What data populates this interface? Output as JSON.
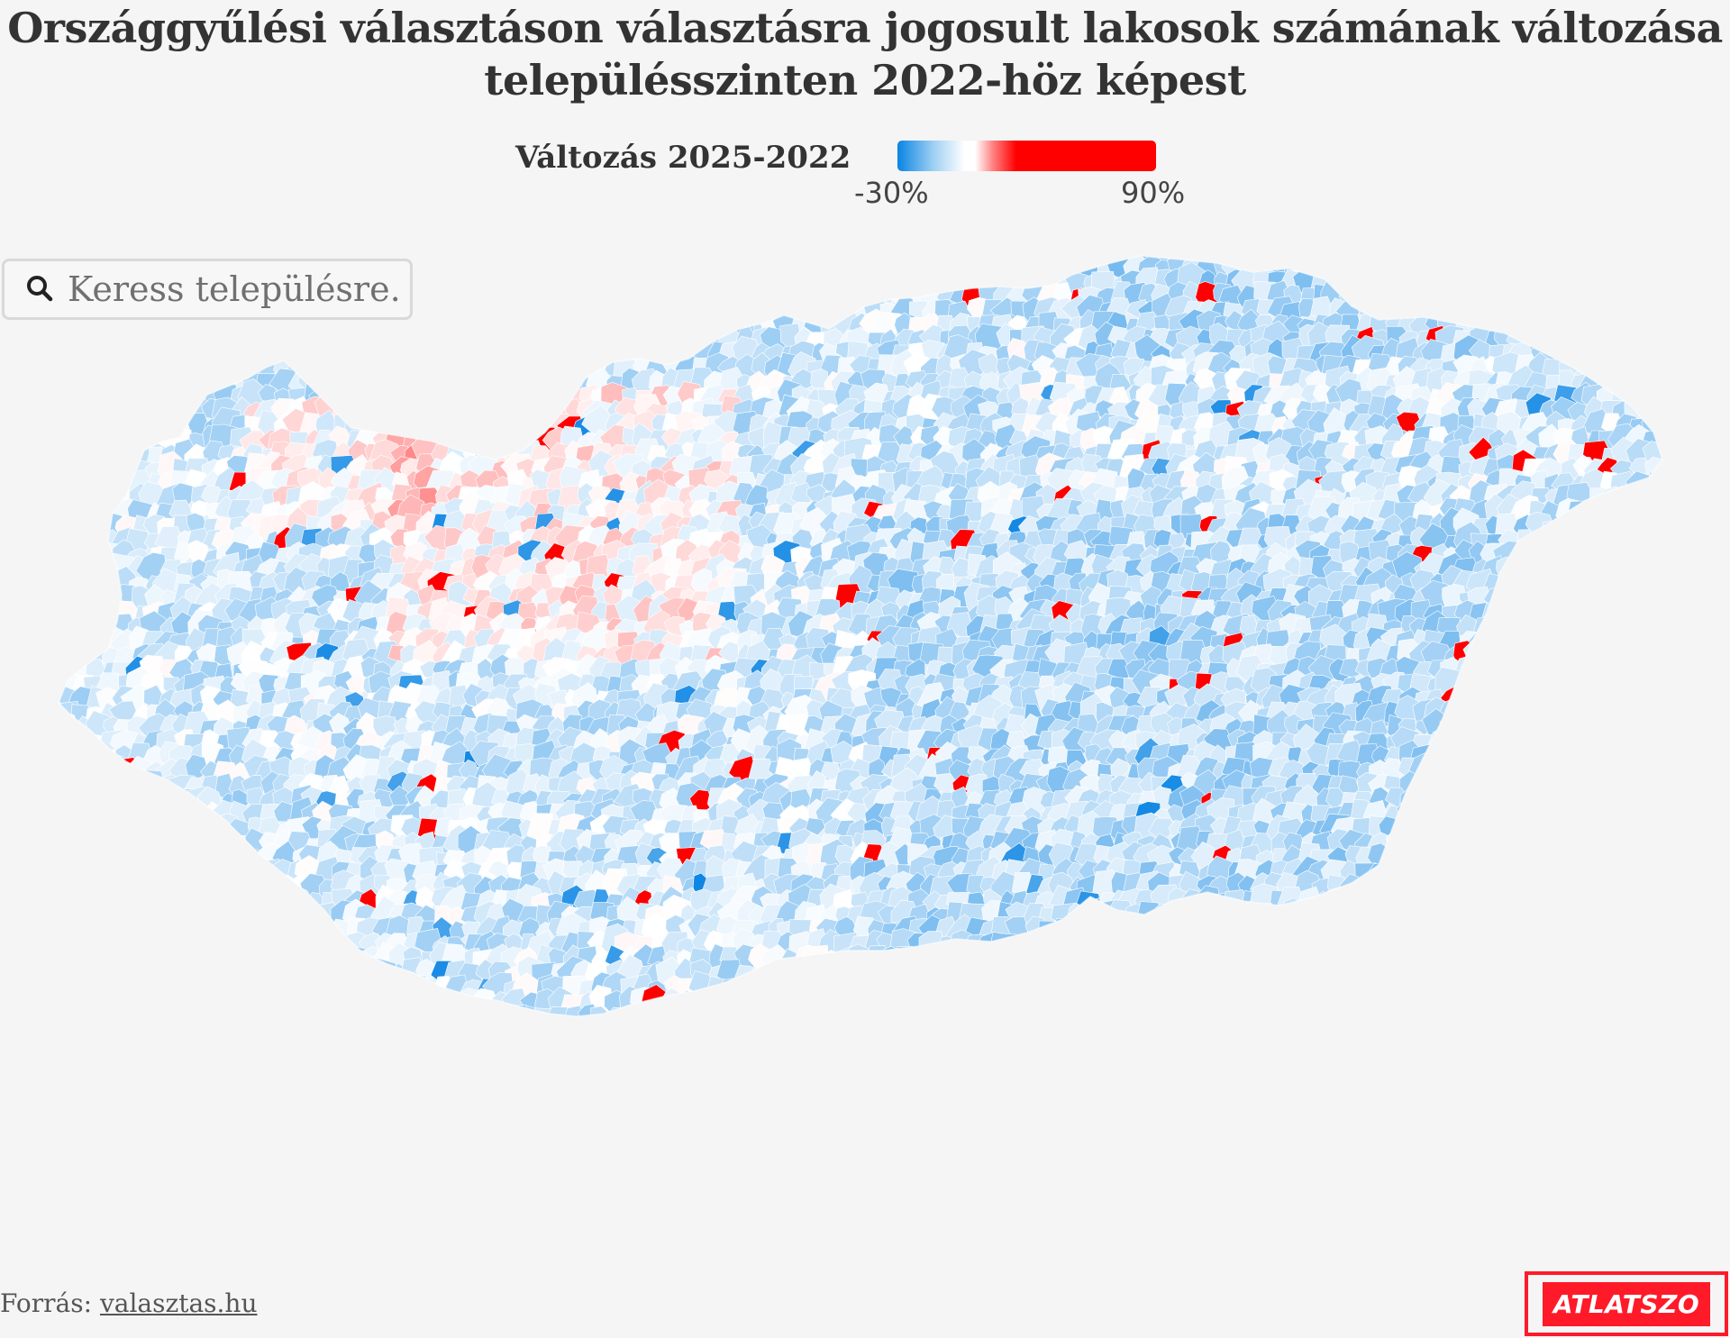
{
  "title": {
    "line1": "Országgyűlési választáson választásra jogosult lakosok számának változása",
    "line2": "településszinten 2022-höz képest"
  },
  "legend": {
    "title": "Változás 2025-2022",
    "min_label": "-30%",
    "max_label": "90%",
    "min_value": -30,
    "max_value": 90,
    "colors": {
      "negative": "#0a84e3",
      "neutral": "#ffffff",
      "positive": "#ff0000"
    }
  },
  "search": {
    "placeholder": "Keress településre..",
    "icon": "search-icon"
  },
  "map": {
    "country": "Hungary",
    "unit": "settlements",
    "dominant_color": "light-blue"
  },
  "footer": {
    "source_prefix": "Forrás:",
    "source_link": "valasztas.hu"
  },
  "logo": {
    "text": "ATLATSZO",
    "color": "#ff1a2a"
  }
}
